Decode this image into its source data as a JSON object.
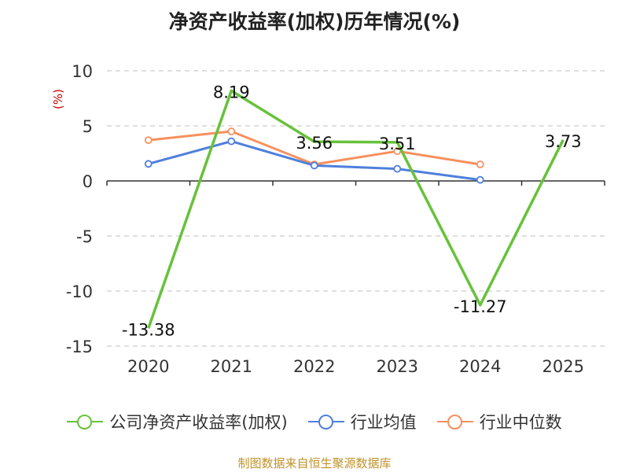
{
  "title": "净资产收益率(加权)历年情况(%)",
  "source": "制图数据来自恒生聚源数据库",
  "colors": {
    "company": "#67c23a",
    "industry_avg": "#4e7fdc",
    "industry_median": "#f7905e",
    "axis": "#333333",
    "grid": "#cccccc",
    "unit": "#cc0000"
  },
  "chart_data": {
    "type": "line",
    "title": "净资产收益率(加权)历年情况(%)",
    "ylabel": "(%)",
    "xlabel": "",
    "categories": [
      "2020",
      "2021",
      "2022",
      "2023",
      "2024",
      "2025"
    ],
    "ylim": [
      -15,
      10
    ],
    "yticks": [
      10,
      5,
      0,
      -5,
      -10,
      -15
    ],
    "grid": true,
    "legend_position": "bottom",
    "series": [
      {
        "name": "公司净资产收益率(加权)",
        "values": [
          -13.38,
          8.19,
          3.56,
          3.51,
          -11.27,
          3.73
        ],
        "labels": [
          "-13.38",
          "8.19",
          "3.56",
          "3.51",
          "-11.27",
          "3.73"
        ],
        "show_markers": false
      },
      {
        "name": "行业均值",
        "values": [
          1.55,
          3.6,
          1.4,
          1.1,
          0.1,
          null
        ],
        "show_markers": true
      },
      {
        "name": "行业中位数",
        "values": [
          3.7,
          4.5,
          1.5,
          2.7,
          1.5,
          null
        ],
        "show_markers": true
      }
    ]
  }
}
